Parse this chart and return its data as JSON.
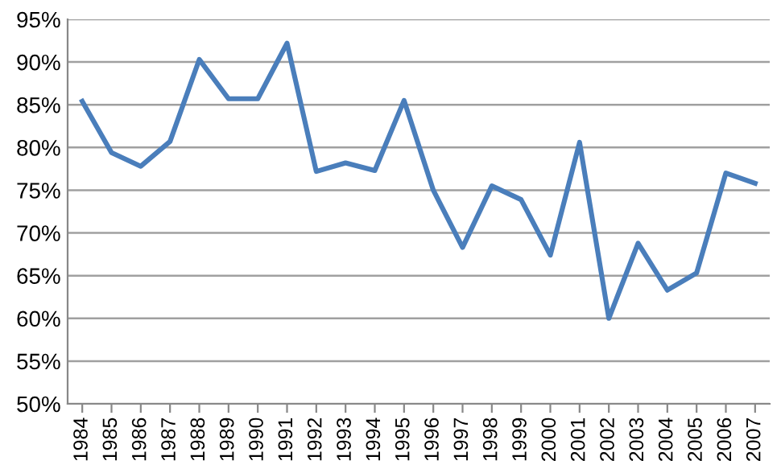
{
  "chart_data": {
    "type": "line",
    "categories": [
      "1984",
      "1985",
      "1986",
      "1987",
      "1988",
      "1989",
      "1990",
      "1991",
      "1992",
      "1993",
      "1994",
      "1995",
      "1996",
      "1997",
      "1998",
      "1999",
      "2000",
      "2001",
      "2002",
      "2003",
      "2004",
      "2005",
      "2006",
      "2007"
    ],
    "series": [
      {
        "color": "#4a7ebb",
        "values": [
          85.4,
          79.4,
          77.8,
          80.7,
          90.3,
          85.7,
          85.7,
          92.2,
          77.2,
          78.2,
          77.3,
          85.5,
          75.0,
          68.3,
          75.5,
          73.9,
          67.4,
          80.6,
          60.0,
          68.8,
          63.3,
          65.3,
          77.0,
          75.8
        ]
      }
    ],
    "ylim": [
      50,
      95
    ],
    "yticks": [
      {
        "value": 50,
        "label": "50%"
      },
      {
        "value": 55,
        "label": "55%"
      },
      {
        "value": 60,
        "label": "60%"
      },
      {
        "value": 65,
        "label": "65%"
      },
      {
        "value": 70,
        "label": "70%"
      },
      {
        "value": 75,
        "label": "75%"
      },
      {
        "value": 80,
        "label": "80%"
      },
      {
        "value": 85,
        "label": "85%"
      },
      {
        "value": 90,
        "label": "90%"
      },
      {
        "value": 95,
        "label": "95%"
      }
    ],
    "grid": "y",
    "marker": "none",
    "line_style": "solid"
  }
}
